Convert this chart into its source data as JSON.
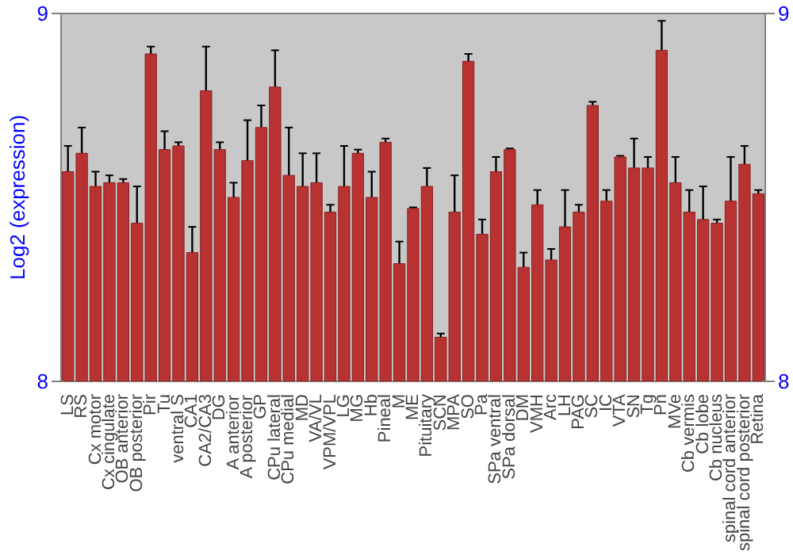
{
  "chart_data": {
    "type": "bar",
    "ylabel": "Log2 (expression)",
    "categories": [
      "LS",
      "RS",
      "Cx motor",
      "Cx cingulate",
      "OB anterior",
      "OB posterior",
      "Pir",
      "Tu",
      "ventral S",
      "CA1",
      "CA2/CA3",
      "DG",
      "A anterior",
      "A posterior",
      "GP",
      "CPu lateral",
      "CPu medial",
      "MD",
      "VA/VL",
      "VPM/VPL",
      "LG",
      "MG",
      "Hb",
      "Pineal",
      "M",
      "ME",
      "Pituitary",
      "SCN",
      "MPA",
      "SO",
      "Pa",
      "SPa ventral",
      "SPa dorsal",
      "DM",
      "VMH",
      "Arc",
      "LH",
      "PAG",
      "SC",
      "IC",
      "VTA",
      "SN",
      "Tg",
      "Pn",
      "MVe",
      "Cb vermis",
      "Cb lobe",
      "Cb nucleus",
      "spinal cord anterior",
      "spinal cord posterior",
      "Retina"
    ],
    "values": [
      8.57,
      8.62,
      8.53,
      8.54,
      8.54,
      8.43,
      8.89,
      8.63,
      8.64,
      8.35,
      8.79,
      8.63,
      8.5,
      8.6,
      8.69,
      8.8,
      8.56,
      8.53,
      8.54,
      8.46,
      8.53,
      8.62,
      8.5,
      8.65,
      8.32,
      8.47,
      8.53,
      8.12,
      8.46,
      8.87,
      8.4,
      8.57,
      8.63,
      8.31,
      8.48,
      8.33,
      8.42,
      8.46,
      8.75,
      8.49,
      8.61,
      8.58,
      8.58,
      8.9,
      8.54,
      8.46,
      8.44,
      8.43,
      8.49,
      8.59,
      8.51
    ],
    "errors": [
      0.07,
      0.07,
      0.04,
      0.02,
      0.01,
      0.1,
      0.02,
      0.05,
      0.01,
      0.07,
      0.12,
      0.02,
      0.04,
      0.11,
      0.06,
      0.1,
      0.13,
      0.09,
      0.08,
      0.02,
      0.11,
      0.01,
      0.07,
      0.01,
      0.06,
      0.003,
      0.05,
      0.01,
      0.1,
      0.02,
      0.04,
      0.04,
      0.003,
      0.04,
      0.04,
      0.03,
      0.1,
      0.02,
      0.01,
      0.03,
      0.003,
      0.08,
      0.03,
      0.08,
      0.07,
      0.06,
      0.09,
      0.01,
      0.12,
      0.05,
      0.01
    ],
    "color": "#b83232",
    "ylim": [
      8,
      9
    ],
    "yticks": [
      8,
      9
    ],
    "y2lim": [
      8,
      9
    ],
    "y2ticks": [
      8,
      9
    ],
    "grid": false
  }
}
